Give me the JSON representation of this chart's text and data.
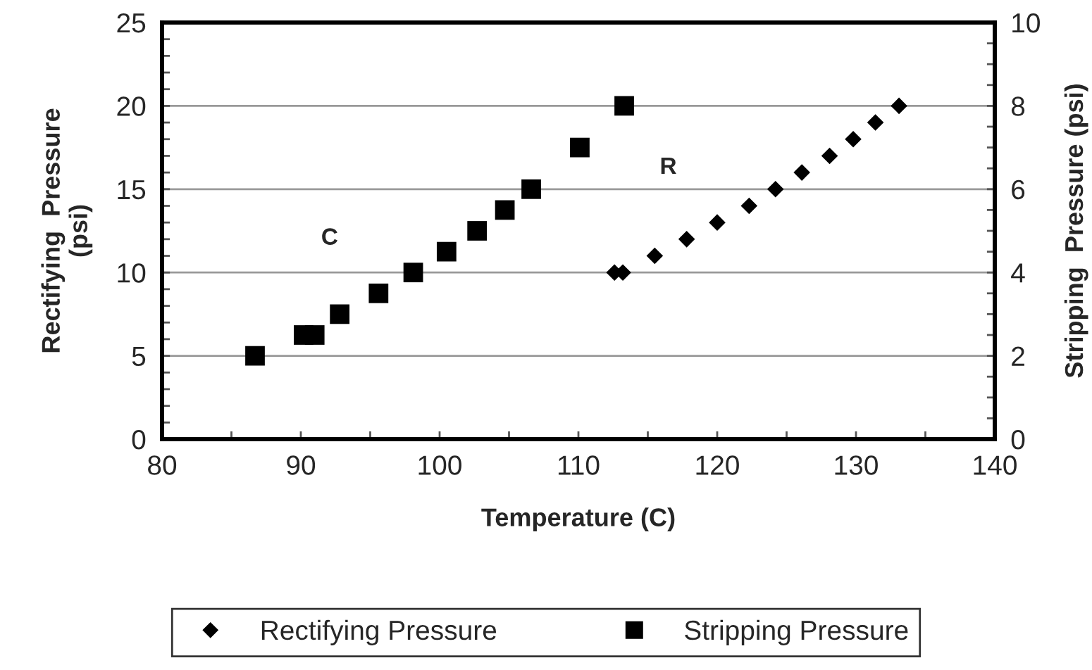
{
  "chart_data": {
    "type": "scatter",
    "xlabel": "Temperature (C)",
    "ylabel": "Rectifying  Pressure\n(psi)",
    "y2label": "Stripping  Pressure (psi)",
    "series": [
      {
        "name": "Rectifying Pressure",
        "color": "#000000",
        "marker": "diamond",
        "x": [
          112.6,
          113.2,
          115.5,
          117.8,
          120.0,
          122.3,
          124.2,
          126.1,
          128.1,
          129.8,
          131.4,
          133.1
        ],
        "values": [
          10,
          10,
          11,
          12,
          13,
          14,
          15,
          16,
          17,
          18,
          19,
          20
        ]
      },
      {
        "name": "Stripping Pressure",
        "color": "#000000",
        "marker": "square",
        "axis": "y2",
        "x": [
          86.7,
          90.2,
          91.0,
          92.8,
          95.6,
          98.1,
          100.5,
          102.7,
          104.7,
          106.6,
          110.1,
          113.3
        ],
        "values": [
          2,
          2.5,
          2.5,
          3,
          3.5,
          4,
          4.5,
          5,
          5.5,
          6,
          7,
          8
        ]
      }
    ],
    "xlim": [
      80,
      140
    ],
    "xticks": [
      80,
      90,
      100,
      110,
      120,
      130,
      140
    ],
    "ylim": [
      0,
      25
    ],
    "yticks": [
      0,
      5,
      10,
      15,
      20,
      25
    ],
    "y2lim": [
      0,
      10
    ],
    "y2ticks": [
      0,
      2,
      4,
      6,
      8,
      10
    ],
    "grid": "y",
    "legend": "bottom",
    "annotations": [
      "C",
      "R"
    ]
  }
}
